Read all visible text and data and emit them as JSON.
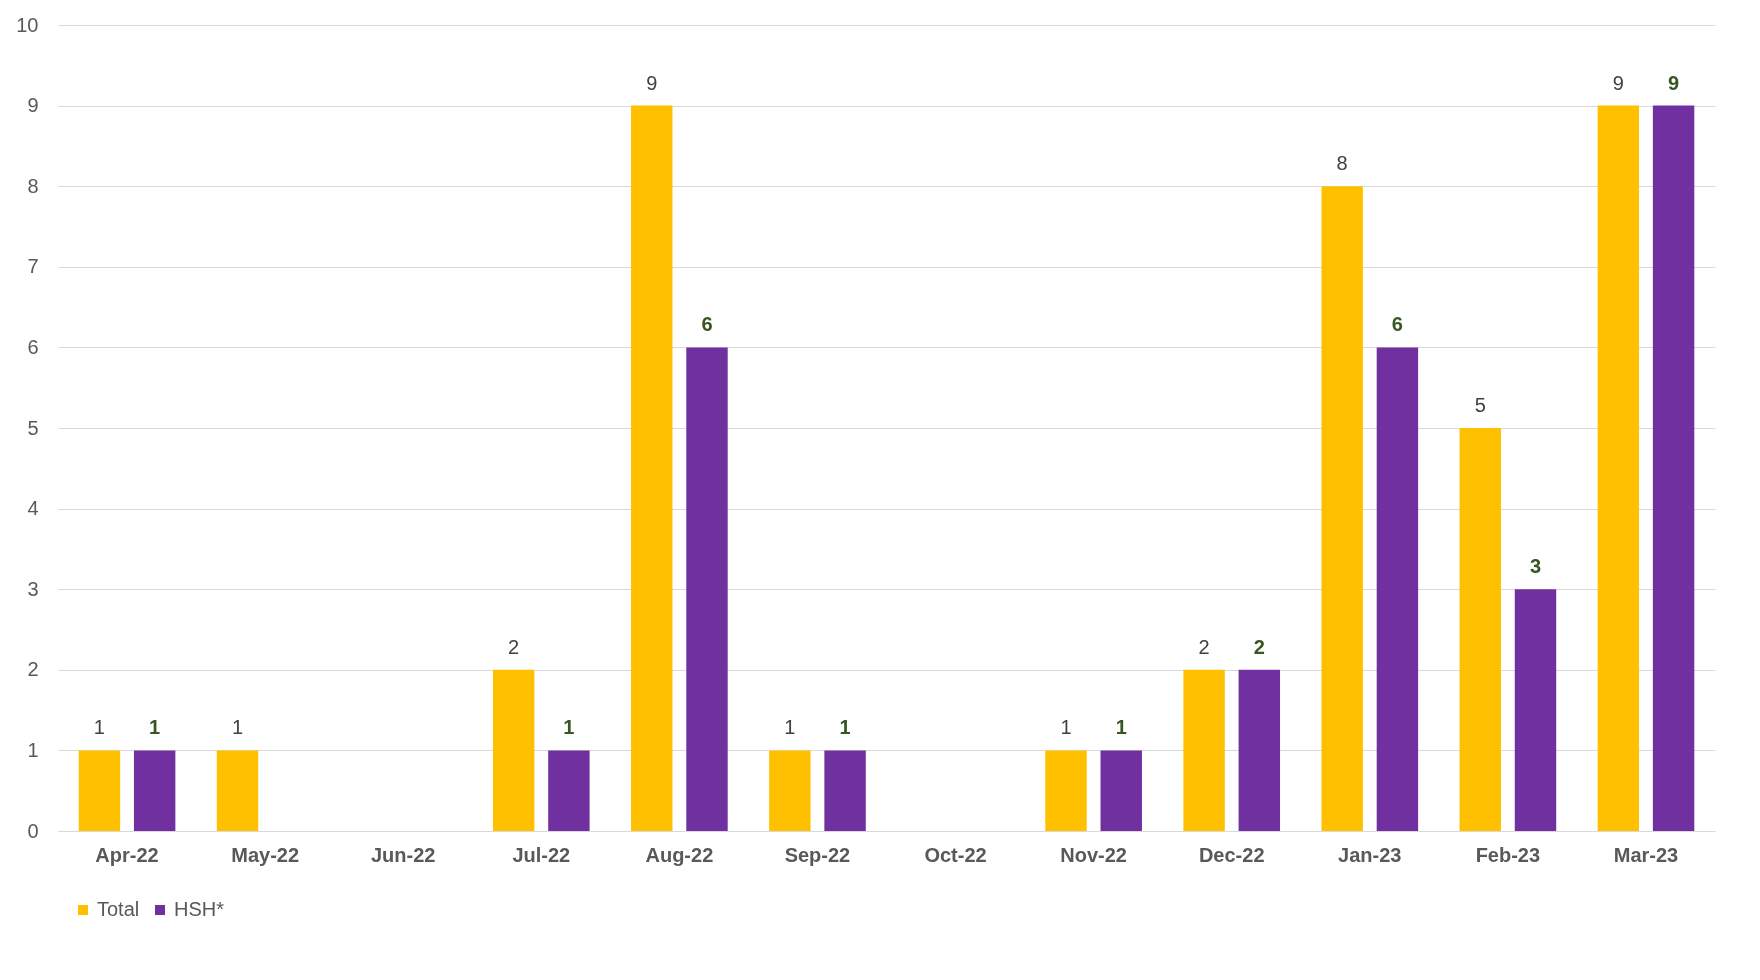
{
  "chart_data": {
    "type": "bar",
    "categories": [
      "Apr-22",
      "May-22",
      "Jun-22",
      "Jul-22",
      "Aug-22",
      "Sep-22",
      "Oct-22",
      "Nov-22",
      "Dec-22",
      "Jan-23",
      "Feb-23",
      "Mar-23"
    ],
    "series": [
      {
        "name": "Total",
        "color": "#ffc000",
        "values": [
          1,
          1,
          null,
          2,
          9,
          1,
          null,
          1,
          2,
          8,
          5,
          9
        ]
      },
      {
        "name": "HSH*",
        "color": "#7030a0",
        "values": [
          1,
          null,
          null,
          1,
          6,
          1,
          null,
          1,
          2,
          6,
          3,
          9
        ]
      }
    ],
    "ylim": [
      0,
      10
    ],
    "yticks": [
      0,
      1,
      2,
      3,
      4,
      5,
      6,
      7,
      8,
      9,
      10
    ],
    "grid": "y",
    "legend": "bottom",
    "data_labels": true
  }
}
